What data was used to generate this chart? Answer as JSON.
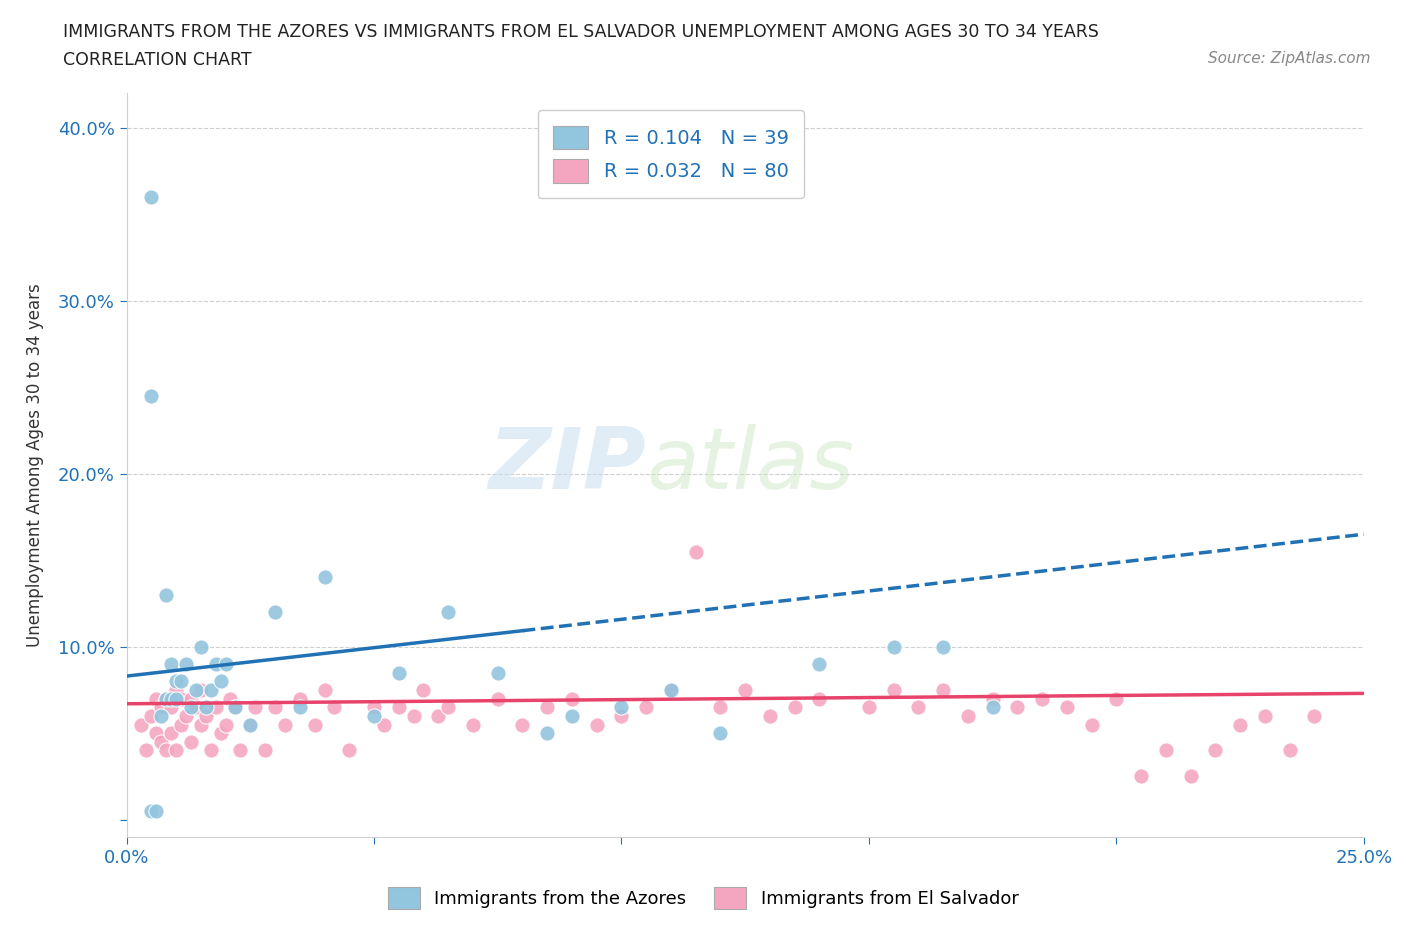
{
  "title_line1": "IMMIGRANTS FROM THE AZORES VS IMMIGRANTS FROM EL SALVADOR UNEMPLOYMENT AMONG AGES 30 TO 34 YEARS",
  "title_line2": "CORRELATION CHART",
  "source_text": "Source: ZipAtlas.com",
  "ylabel": "Unemployment Among Ages 30 to 34 years",
  "xlim": [
    0.0,
    0.25
  ],
  "ylim": [
    -0.01,
    0.42
  ],
  "azores_color": "#92c5de",
  "salvador_color": "#f4a6c0",
  "azores_line_color": "#2171b5",
  "salvador_line_color": "#e8436a",
  "R_azores": 0.104,
  "N_azores": 39,
  "R_salvador": 0.032,
  "N_salvador": 80,
  "watermark_zip": "ZIP",
  "watermark_atlas": "atlas",
  "background_color": "#ffffff",
  "azores_line_x0": 0.0,
  "azores_line_y0": 0.083,
  "azores_line_x1": 0.25,
  "azores_line_y1": 0.165,
  "salvador_line_x0": 0.0,
  "salvador_line_y0": 0.067,
  "salvador_line_x1": 0.25,
  "salvador_line_y1": 0.073,
  "azores_pts_x": [
    0.005,
    0.005,
    0.006,
    0.007,
    0.008,
    0.009,
    0.009,
    0.01,
    0.01,
    0.011,
    0.012,
    0.013,
    0.014,
    0.015,
    0.016,
    0.017,
    0.018,
    0.019,
    0.02,
    0.022,
    0.025,
    0.03,
    0.035,
    0.04,
    0.05,
    0.055,
    0.065,
    0.075,
    0.085,
    0.09,
    0.1,
    0.11,
    0.12,
    0.14,
    0.155,
    0.165,
    0.175,
    0.005,
    0.008
  ],
  "azores_pts_y": [
    0.36,
    0.005,
    0.005,
    0.06,
    0.07,
    0.07,
    0.09,
    0.07,
    0.08,
    0.08,
    0.09,
    0.065,
    0.075,
    0.1,
    0.065,
    0.075,
    0.09,
    0.08,
    0.09,
    0.065,
    0.055,
    0.12,
    0.065,
    0.14,
    0.06,
    0.085,
    0.12,
    0.085,
    0.05,
    0.06,
    0.065,
    0.075,
    0.05,
    0.09,
    0.1,
    0.1,
    0.065,
    0.245,
    0.13
  ],
  "salvador_pts_x": [
    0.003,
    0.004,
    0.005,
    0.006,
    0.006,
    0.007,
    0.007,
    0.008,
    0.008,
    0.009,
    0.009,
    0.01,
    0.01,
    0.011,
    0.011,
    0.012,
    0.013,
    0.013,
    0.014,
    0.015,
    0.015,
    0.016,
    0.017,
    0.018,
    0.019,
    0.02,
    0.021,
    0.022,
    0.023,
    0.025,
    0.026,
    0.028,
    0.03,
    0.032,
    0.035,
    0.038,
    0.04,
    0.042,
    0.045,
    0.05,
    0.052,
    0.055,
    0.058,
    0.06,
    0.063,
    0.065,
    0.07,
    0.075,
    0.08,
    0.085,
    0.09,
    0.095,
    0.1,
    0.105,
    0.11,
    0.115,
    0.12,
    0.125,
    0.13,
    0.135,
    0.14,
    0.15,
    0.155,
    0.16,
    0.165,
    0.17,
    0.175,
    0.18,
    0.185,
    0.19,
    0.195,
    0.2,
    0.205,
    0.21,
    0.215,
    0.22,
    0.225,
    0.23,
    0.235,
    0.24
  ],
  "salvador_pts_y": [
    0.055,
    0.04,
    0.06,
    0.05,
    0.07,
    0.045,
    0.065,
    0.04,
    0.07,
    0.05,
    0.065,
    0.04,
    0.075,
    0.055,
    0.07,
    0.06,
    0.045,
    0.07,
    0.065,
    0.055,
    0.075,
    0.06,
    0.04,
    0.065,
    0.05,
    0.055,
    0.07,
    0.065,
    0.04,
    0.055,
    0.065,
    0.04,
    0.065,
    0.055,
    0.07,
    0.055,
    0.075,
    0.065,
    0.04,
    0.065,
    0.055,
    0.065,
    0.06,
    0.075,
    0.06,
    0.065,
    0.055,
    0.07,
    0.055,
    0.065,
    0.07,
    0.055,
    0.06,
    0.065,
    0.075,
    0.155,
    0.065,
    0.075,
    0.06,
    0.065,
    0.07,
    0.065,
    0.075,
    0.065,
    0.075,
    0.06,
    0.07,
    0.065,
    0.07,
    0.065,
    0.055,
    0.07,
    0.025,
    0.04,
    0.025,
    0.04,
    0.055,
    0.06,
    0.04,
    0.06
  ]
}
